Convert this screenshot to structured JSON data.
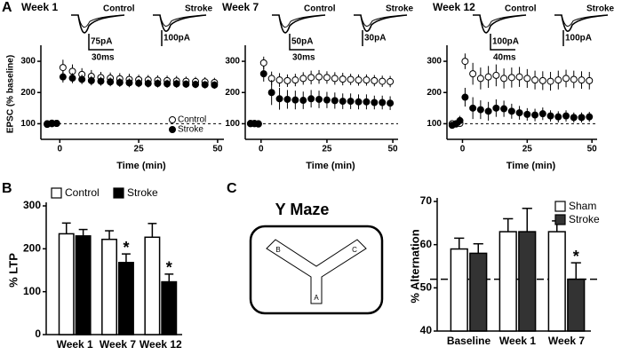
{
  "chart_data": [
    {
      "type": "scatter",
      "panel": "A",
      "title": "Week 1",
      "xlabel": "Time (min)",
      "ylabel": "EPSC (% baseline)",
      "xlim": [
        -6,
        52
      ],
      "ylim": [
        50,
        340
      ],
      "xticks": [
        0,
        25,
        50
      ],
      "yticks": [
        100,
        200,
        300
      ],
      "hline": 100,
      "legend": "lower right",
      "inset_labels": [
        "Control",
        "Stroke"
      ],
      "scale_bars": [
        "75pA",
        "30ms",
        "100pA"
      ],
      "x": [
        -4,
        -2.5,
        -1,
        1,
        4,
        7,
        10,
        13,
        16,
        19,
        22,
        25,
        28,
        31,
        34,
        37,
        40,
        43,
        46,
        49
      ],
      "series": [
        {
          "name": "Control",
          "color": "#ffffff",
          "values": [
            100,
            102,
            101,
            280,
            268,
            258,
            252,
            248,
            246,
            244,
            242,
            241,
            240,
            239,
            238,
            237,
            236,
            235,
            234,
            232
          ],
          "errors": [
            5,
            5,
            5,
            25,
            22,
            20,
            20,
            18,
            18,
            18,
            18,
            16,
            16,
            16,
            16,
            16,
            15,
            15,
            15,
            15
          ]
        },
        {
          "name": "Stroke",
          "color": "#000000",
          "values": [
            98,
            100,
            101,
            250,
            246,
            242,
            238,
            236,
            234,
            232,
            231,
            230,
            229,
            229,
            228,
            228,
            227,
            226,
            225,
            224
          ],
          "errors": [
            6,
            6,
            6,
            18,
            16,
            15,
            15,
            14,
            14,
            14,
            14,
            13,
            13,
            13,
            13,
            13,
            12,
            12,
            12,
            12
          ]
        }
      ]
    },
    {
      "type": "scatter",
      "title": "Week 7",
      "xlabel": "Time (min)",
      "xlim": [
        -6,
        52
      ],
      "ylim": [
        50,
        340
      ],
      "xticks": [
        0,
        25,
        50
      ],
      "yticks": [
        100,
        200,
        300
      ],
      "hline": 100,
      "inset_labels": [
        "Control",
        "Stroke"
      ],
      "scale_bars": [
        "50pA",
        "30ms",
        "30pA"
      ],
      "x": [
        -4,
        -2.5,
        -1,
        1,
        4,
        7,
        10,
        13,
        16,
        19,
        22,
        25,
        28,
        31,
        34,
        37,
        40,
        43,
        46,
        49
      ],
      "series": [
        {
          "color": "#ffffff",
          "values": [
            100,
            101,
            100,
            295,
            245,
            240,
            238,
            240,
            245,
            248,
            250,
            248,
            245,
            243,
            242,
            240,
            240,
            238,
            236,
            235
          ],
          "errors": [
            5,
            5,
            5,
            20,
            22,
            22,
            20,
            20,
            20,
            22,
            22,
            20,
            20,
            20,
            18,
            18,
            18,
            18,
            18,
            18
          ]
        },
        {
          "color": "#000000",
          "values": [
            101,
            100,
            99,
            260,
            200,
            180,
            178,
            176,
            175,
            180,
            178,
            176,
            174,
            172,
            172,
            170,
            170,
            168,
            168,
            166
          ],
          "errors": [
            5,
            5,
            5,
            25,
            40,
            35,
            30,
            30,
            28,
            28,
            28,
            26,
            26,
            25,
            25,
            24,
            24,
            22,
            22,
            22
          ]
        }
      ]
    },
    {
      "type": "scatter",
      "title": "Week 12",
      "xlabel": "Time (min)",
      "xlim": [
        -6,
        52
      ],
      "ylim": [
        50,
        340
      ],
      "xticks": [
        0,
        25,
        50
      ],
      "yticks": [
        100,
        200,
        300
      ],
      "hline": 100,
      "inset_labels": [
        "Control",
        "Stroke"
      ],
      "scale_bars": [
        "100pA",
        "40ms",
        "100pA"
      ],
      "x": [
        -4,
        -2.5,
        -1,
        1,
        4,
        7,
        10,
        13,
        16,
        19,
        22,
        25,
        28,
        31,
        34,
        37,
        40,
        43,
        46,
        49
      ],
      "series": [
        {
          "color": "#ffffff",
          "values": [
            100,
            99,
            101,
            300,
            260,
            245,
            250,
            255,
            245,
            248,
            250,
            245,
            240,
            238,
            236,
            240,
            245,
            242,
            240,
            238
          ],
          "errors": [
            6,
            6,
            6,
            25,
            35,
            35,
            35,
            35,
            32,
            32,
            32,
            30,
            30,
            30,
            30,
            30,
            28,
            28,
            28,
            28
          ]
        },
        {
          "color": "#000000",
          "values": [
            95,
            100,
            110,
            185,
            150,
            145,
            140,
            150,
            148,
            140,
            135,
            130,
            128,
            132,
            125,
            122,
            125,
            120,
            120,
            122
          ],
          "errors": [
            10,
            10,
            15,
            30,
            35,
            30,
            30,
            28,
            26,
            24,
            22,
            20,
            20,
            20,
            18,
            18,
            18,
            16,
            16,
            16
          ]
        }
      ]
    },
    {
      "type": "bar",
      "panel": "B",
      "ylabel": "% LTP",
      "categories": [
        "Week 1",
        "Week 7",
        "Week 12"
      ],
      "ylim": [
        0,
        300
      ],
      "yticks": [
        0,
        100,
        200,
        300
      ],
      "legend": "top",
      "series": [
        {
          "name": "Control",
          "color": "#ffffff",
          "values": [
            235,
            222,
            227
          ],
          "errors": [
            25,
            20,
            32
          ]
        },
        {
          "name": "Stroke",
          "color": "#000000",
          "values": [
            230,
            168,
            123
          ],
          "errors": [
            15,
            20,
            18
          ],
          "significance": [
            null,
            "*",
            "*"
          ]
        }
      ]
    },
    {
      "type": "bar",
      "panel": "C",
      "ylabel": "% Alternation",
      "categories": [
        "Baseline",
        "Week 1",
        "Week 7"
      ],
      "ylim": [
        40,
        70
      ],
      "yticks": [
        40,
        50,
        60,
        70
      ],
      "hline": 52,
      "legend": "upper right",
      "series": [
        {
          "name": "Sham",
          "color": "#ffffff",
          "values": [
            59,
            63,
            63
          ],
          "errors": [
            2.5,
            3,
            2.5
          ]
        },
        {
          "name": "Stroke",
          "color": "#333333",
          "values": [
            58,
            63,
            52
          ],
          "errors": [
            2.2,
            5.4,
            3.8
          ],
          "significance": [
            null,
            null,
            "*"
          ]
        }
      ]
    }
  ],
  "diagram": {
    "title": "Y Maze",
    "arms": [
      "B",
      "C",
      "A"
    ]
  }
}
